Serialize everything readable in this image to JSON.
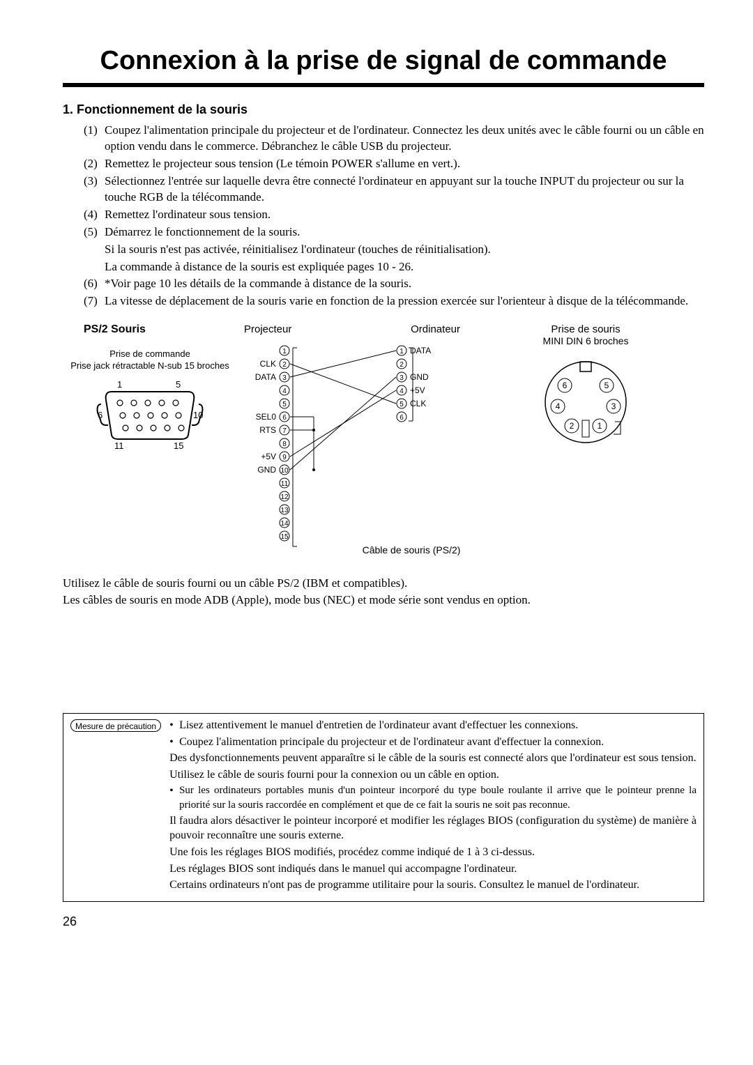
{
  "title": "Connexion à la prise de signal de commande",
  "section": {
    "heading": "1.  Fonctionnement de la souris",
    "items": [
      {
        "n": "(1)",
        "t": "Coupez l'alimentation principale du projecteur et de l'ordinateur. Connectez les deux unités avec le câble fourni ou un câble en option vendu dans le commerce. Débranchez le câble USB du projecteur."
      },
      {
        "n": "(2)",
        "t": "Remettez le projecteur sous tension (Le témoin POWER s'allume en vert.)."
      },
      {
        "n": "(3)",
        "t": "Sélectionnez l'entrée sur laquelle devra être connecté l'ordinateur en appuyant sur la touche INPUT du projecteur ou sur la touche RGB de la télécommande."
      },
      {
        "n": "(4)",
        "t": "Remettez l'ordinateur sous tension."
      },
      {
        "n": "(5)",
        "t": "Démarrez le fonctionnement de la souris."
      },
      {
        "n": "(6)",
        "t": "*Voir page 10 les détails de la commande à distance de la souris."
      },
      {
        "n": "(7)",
        "t": "La vitesse de déplacement de la souris varie en fonction de la pression exercée sur l'orienteur à disque de la télécommande."
      }
    ],
    "sub5a": "Si la souris n'est pas activée, réinitialisez l'ordinateur (touches de réinitialisation).",
    "sub5b": "La commande à distance de la souris est expliquée pages 10 - 26."
  },
  "ps2": {
    "title": "PS/2 Souris",
    "control_label_1": "Prise de commande",
    "control_label_2": "Prise jack rétractable N-sub 15 broches",
    "nums": {
      "tl": "1",
      "tr": "5",
      "ml": "6",
      "mr": "10",
      "bl": "11",
      "br": "15"
    }
  },
  "wiring": {
    "projector": "Projecteur",
    "computer": "Ordinateur",
    "proj_pins": [
      {
        "n": "1",
        "lbl": ""
      },
      {
        "n": "2",
        "lbl": "CLK"
      },
      {
        "n": "3",
        "lbl": "DATA"
      },
      {
        "n": "4",
        "lbl": ""
      },
      {
        "n": "5",
        "lbl": ""
      },
      {
        "n": "6",
        "lbl": "SEL0"
      },
      {
        "n": "7",
        "lbl": "RTS"
      },
      {
        "n": "8",
        "lbl": ""
      },
      {
        "n": "9",
        "lbl": "+5V"
      },
      {
        "n": "10",
        "lbl": "GND"
      },
      {
        "n": "11",
        "lbl": ""
      },
      {
        "n": "12",
        "lbl": ""
      },
      {
        "n": "13",
        "lbl": ""
      },
      {
        "n": "14",
        "lbl": ""
      },
      {
        "n": "15",
        "lbl": ""
      }
    ],
    "comp_pins": [
      {
        "n": "1",
        "lbl": "DATA"
      },
      {
        "n": "2",
        "lbl": ""
      },
      {
        "n": "3",
        "lbl": "GND"
      },
      {
        "n": "4",
        "lbl": "+5V"
      },
      {
        "n": "5",
        "lbl": "CLK"
      },
      {
        "n": "6",
        "lbl": ""
      }
    ],
    "cable_label": "Câble de souris (PS/2)"
  },
  "din": {
    "title_1": "Prise de souris",
    "title_2": "MINI DIN 6 broches",
    "pins": [
      "1",
      "2",
      "3",
      "4",
      "5",
      "6"
    ]
  },
  "post": {
    "l1": "Utilisez le câble de souris fourni ou un câble PS/2 (IBM et compatibles).",
    "l2": "Les câbles de souris en mode ADB (Apple), mode bus (NEC) et mode série sont vendus en option."
  },
  "caution": {
    "badge": "Mesure de précaution",
    "b1": "Lisez attentivement le manuel d'entretien de l'ordinateur avant d'effectuer les connexions.",
    "b2": "Coupez l'alimentation principale du projecteur et de l'ordinateur avant d'effectuer la connexion.",
    "p1": "Des dysfonctionnements peuvent apparaître si le câble de la souris est connecté alors que l'ordinateur est sous tension.",
    "p2": "Utilisez le câble de souris fourni pour la connexion ou un câble en option.",
    "b3": "Sur les ordinateurs portables munis d'un pointeur incorporé du type boule roulante il arrive que le pointeur prenne la priorité sur la souris raccordée en complément et que de ce fait la souris ne soit pas reconnue.",
    "p3": "Il faudra alors désactiver le pointeur incorporé et modifier les réglages BIOS (configuration du système) de manière à pouvoir reconnaître une souris externe.",
    "p4": "Une fois les réglages BIOS modifiés, procédez comme indiqué de 1 à 3 ci-dessus.",
    "p5": "Les réglages BIOS sont indiqués dans le manuel qui accompagne l'ordinateur.",
    "p6": "Certains ordinateurs n'ont pas de programme utilitaire pour la souris. Consultez le manuel de l'ordinateur."
  },
  "page_number": "26"
}
